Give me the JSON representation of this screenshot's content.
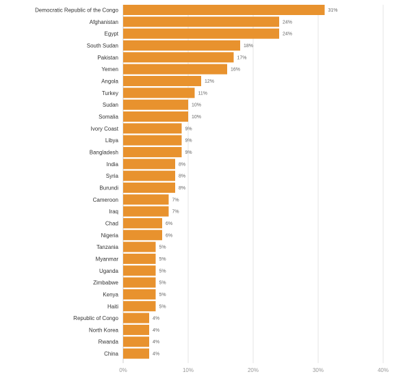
{
  "chart_data": {
    "type": "bar",
    "orientation": "horizontal",
    "categories": [
      "Democratic Republic of the Congo",
      "Afghanistan",
      "Egypt",
      "South Sudan",
      "Pakistan",
      "Yemen",
      "Angola",
      "Turkey",
      "Sudan",
      "Somalia",
      "Ivory Coast",
      "Libya",
      "Bangladesh",
      "India",
      "Syria",
      "Burundi",
      "Cameroon",
      "Iraq",
      "Chad",
      "Nigeria",
      "Tanzania",
      "Myanmar",
      "Uganda",
      "Zimbabwe",
      "Kenya",
      "Haiti",
      "Republic of Congo",
      "North Korea",
      "Rwanda",
      "China"
    ],
    "values": [
      31,
      24,
      24,
      18,
      17,
      16,
      12,
      11,
      10,
      10,
      9,
      9,
      9,
      8,
      8,
      8,
      7,
      7,
      6,
      6,
      5,
      5,
      5,
      5,
      5,
      5,
      4,
      4,
      4,
      4
    ],
    "value_labels": [
      "31%",
      "24%",
      "24%",
      "18%",
      "17%",
      "16%",
      "12%",
      "11%",
      "10%",
      "10%",
      "9%",
      "9%",
      "9%",
      "8%",
      "8%",
      "8%",
      "7%",
      "7%",
      "6%",
      "6%",
      "5%",
      "5%",
      "5%",
      "5%",
      "5%",
      "5%",
      "4%",
      "4%",
      "4%",
      "4%"
    ],
    "xlim": [
      0,
      40
    ],
    "xticks": [
      0,
      10,
      20,
      30,
      40
    ],
    "xtick_labels": [
      "0%",
      "10%",
      "20%",
      "30%",
      "40%"
    ],
    "grid": true,
    "bar_color": "#E8922E",
    "title": "",
    "xlabel": "",
    "ylabel": ""
  }
}
